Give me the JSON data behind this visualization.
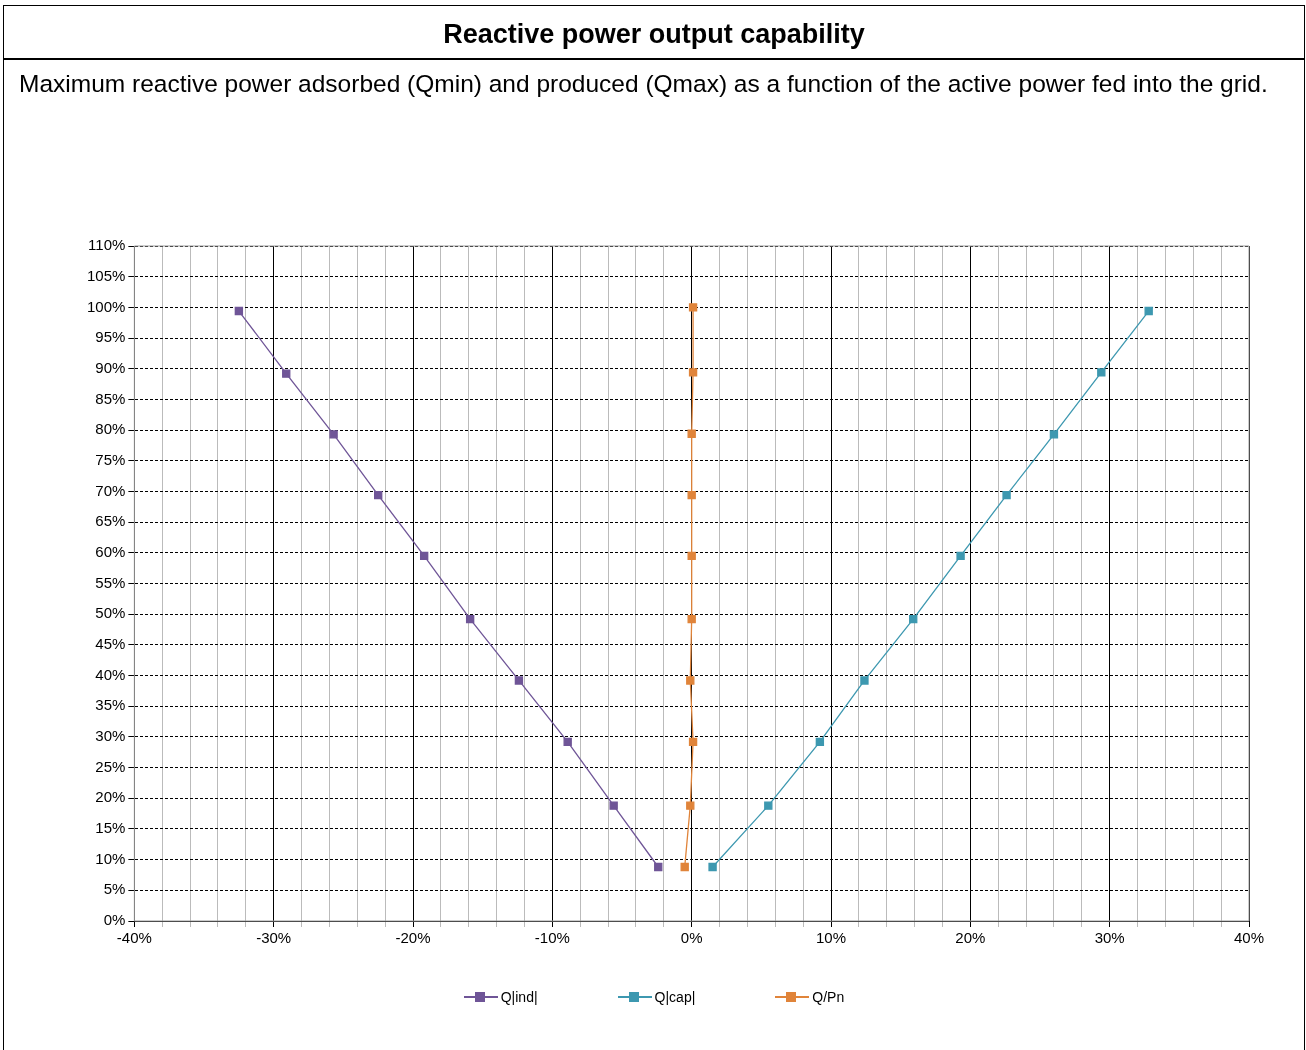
{
  "chart_data": {
    "type": "line",
    "title": "Reactive power output capability",
    "subtitle": "Maximum reactive power adsorbed (Qmin) and produced (Qmax) as a function of the active power fed into the grid.",
    "xlim": [
      -40,
      40
    ],
    "xticks": [
      {
        "value": -40,
        "label": "-40%"
      },
      {
        "value": -38,
        "label": null
      },
      {
        "value": -36,
        "label": null
      },
      {
        "value": -34,
        "label": null
      },
      {
        "value": -32,
        "label": null
      },
      {
        "value": -30,
        "label": "-30%"
      },
      {
        "value": -28,
        "label": null
      },
      {
        "value": -26,
        "label": null
      },
      {
        "value": -24,
        "label": null
      },
      {
        "value": -22,
        "label": null
      },
      {
        "value": -20,
        "label": "-20%"
      },
      {
        "value": -18,
        "label": null
      },
      {
        "value": -16,
        "label": null
      },
      {
        "value": -14,
        "label": null
      },
      {
        "value": -12,
        "label": null
      },
      {
        "value": -10,
        "label": "-10%"
      },
      {
        "value": -8,
        "label": null
      },
      {
        "value": -6,
        "label": null
      },
      {
        "value": -4,
        "label": null
      },
      {
        "value": -2,
        "label": null
      },
      {
        "value": 0,
        "label": "0%"
      },
      {
        "value": 2,
        "label": null
      },
      {
        "value": 4,
        "label": null
      },
      {
        "value": 6,
        "label": null
      },
      {
        "value": 8,
        "label": null
      },
      {
        "value": 10,
        "label": "10%"
      },
      {
        "value": 12,
        "label": null
      },
      {
        "value": 14,
        "label": null
      },
      {
        "value": 16,
        "label": null
      },
      {
        "value": 18,
        "label": null
      },
      {
        "value": 20,
        "label": "20%"
      },
      {
        "value": 22,
        "label": null
      },
      {
        "value": 24,
        "label": null
      },
      {
        "value": 26,
        "label": null
      },
      {
        "value": 28,
        "label": null
      },
      {
        "value": 30,
        "label": "30%"
      },
      {
        "value": 32,
        "label": null
      },
      {
        "value": 34,
        "label": null
      },
      {
        "value": 36,
        "label": null
      },
      {
        "value": 38,
        "label": null
      },
      {
        "value": 40,
        "label": "40%"
      }
    ],
    "ylim": [
      0,
      110
    ],
    "yticks": [
      {
        "value": 0,
        "label": "0%"
      },
      {
        "value": 5,
        "label": "5%"
      },
      {
        "value": 10,
        "label": "10%"
      },
      {
        "value": 15,
        "label": "15%"
      },
      {
        "value": 20,
        "label": "20%"
      },
      {
        "value": 25,
        "label": "25%"
      },
      {
        "value": 30,
        "label": "30%"
      },
      {
        "value": 35,
        "label": "35%"
      },
      {
        "value": 40,
        "label": "40%"
      },
      {
        "value": 45,
        "label": "45%"
      },
      {
        "value": 50,
        "label": "50%"
      },
      {
        "value": 55,
        "label": "55%"
      },
      {
        "value": 60,
        "label": "60%"
      },
      {
        "value": 65,
        "label": "65%"
      },
      {
        "value": 70,
        "label": "70%"
      },
      {
        "value": 75,
        "label": "75%"
      },
      {
        "value": 80,
        "label": "80%"
      },
      {
        "value": 85,
        "label": "85%"
      },
      {
        "value": 90,
        "label": "90%"
      },
      {
        "value": 95,
        "label": "95%"
      },
      {
        "value": 100,
        "label": "100%"
      },
      {
        "value": 105,
        "label": "105%"
      },
      {
        "value": 110,
        "label": "110%"
      }
    ],
    "grid": true,
    "legend": "bottom",
    "marker": "square",
    "line_style": "solid",
    "series": [
      {
        "name": "Q|ind|",
        "color": "#6f5597",
        "x": [
          -32.5,
          -29.1,
          -25.7,
          -22.5,
          -19.2,
          -15.9,
          -12.4,
          -8.9,
          -5.6,
          -2.4
        ],
        "values": [
          99.4,
          89.2,
          79.3,
          69.4,
          59.5,
          49.2,
          39.2,
          29.2,
          18.8,
          8.8
        ]
      },
      {
        "name": "Q|cap|",
        "color": "#3d98b0",
        "x": [
          32.8,
          29.4,
          26.0,
          22.6,
          19.3,
          15.9,
          12.4,
          9.2,
          5.5,
          1.5
        ],
        "values": [
          99.4,
          89.4,
          79.3,
          69.4,
          59.5,
          49.2,
          39.2,
          29.2,
          18.8,
          8.8
        ]
      },
      {
        "name": "Q/Pn",
        "color": "#e0843a",
        "x": [
          0.1,
          0.1,
          0,
          0,
          0,
          0,
          -0.1,
          0.1,
          -0.1,
          -0.5
        ],
        "values": [
          100,
          89.4,
          79.4,
          69.4,
          59.5,
          49.2,
          39.2,
          29.2,
          18.8,
          8.8
        ]
      }
    ]
  }
}
